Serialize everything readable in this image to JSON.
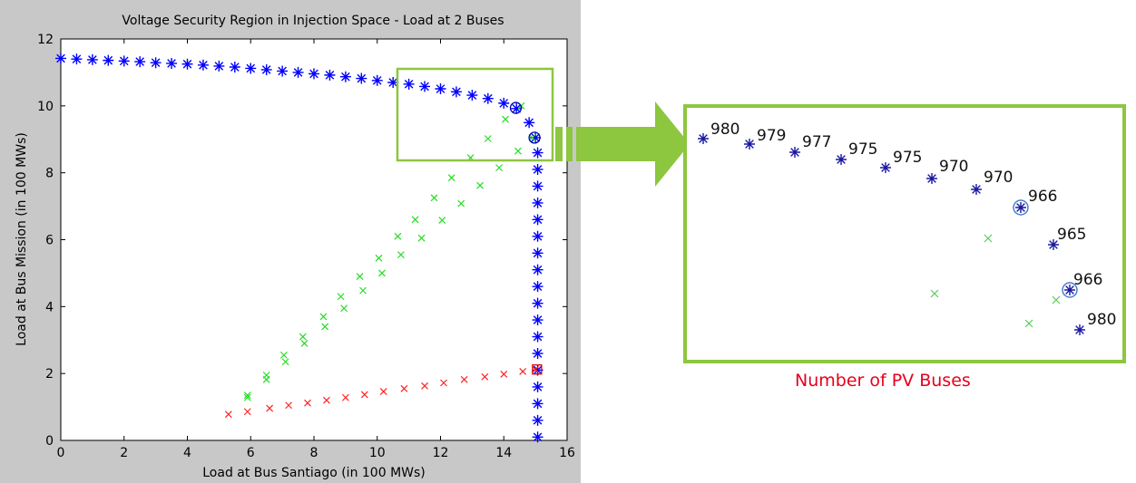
{
  "chart_data": {
    "type": "scatter",
    "title": "Voltage Security Region in Injection Space - Load at 2 Buses",
    "xlabel": "Load at Bus Santiago (in 100 MWs)",
    "ylabel": "Load at Bus Mission (in 100 MWs)",
    "xlim": [
      0,
      16
    ],
    "ylim": [
      0,
      12
    ],
    "xticks": [
      0,
      2,
      4,
      6,
      8,
      10,
      12,
      14,
      16
    ],
    "yticks": [
      0,
      2,
      4,
      6,
      8,
      10,
      12
    ],
    "grid": false,
    "series": [
      {
        "marker": "asterisk",
        "color": "#0000ff",
        "points": [
          [
            0,
            11.42
          ],
          [
            0.5,
            11.4
          ],
          [
            1.0,
            11.38
          ],
          [
            1.5,
            11.36
          ],
          [
            2.0,
            11.34
          ],
          [
            2.5,
            11.32
          ],
          [
            3.0,
            11.29
          ],
          [
            3.5,
            11.27
          ],
          [
            4.0,
            11.25
          ],
          [
            4.5,
            11.22
          ],
          [
            5.0,
            11.19
          ],
          [
            5.5,
            11.16
          ],
          [
            6.0,
            11.12
          ],
          [
            6.5,
            11.08
          ],
          [
            7.0,
            11.04
          ],
          [
            7.5,
            11.0
          ],
          [
            8.0,
            10.96
          ],
          [
            8.5,
            10.92
          ],
          [
            9.0,
            10.87
          ],
          [
            9.5,
            10.82
          ],
          [
            10.0,
            10.76
          ],
          [
            10.5,
            10.7
          ],
          [
            11.0,
            10.65
          ],
          [
            11.5,
            10.58
          ],
          [
            12.0,
            10.51
          ],
          [
            12.5,
            10.42
          ],
          [
            13.0,
            10.32
          ],
          [
            13.5,
            10.22
          ],
          [
            14.0,
            10.08
          ],
          [
            14.4,
            9.92
          ],
          [
            14.8,
            9.5
          ],
          [
            15.0,
            9.05
          ],
          [
            15.07,
            8.6
          ],
          [
            15.07,
            8.1
          ],
          [
            15.07,
            7.6
          ],
          [
            15.07,
            7.1
          ],
          [
            15.07,
            6.6
          ],
          [
            15.07,
            6.1
          ],
          [
            15.07,
            5.6
          ],
          [
            15.07,
            5.1
          ],
          [
            15.07,
            4.6
          ],
          [
            15.07,
            4.1
          ],
          [
            15.07,
            3.6
          ],
          [
            15.07,
            3.1
          ],
          [
            15.07,
            2.6
          ],
          [
            15.07,
            2.1
          ],
          [
            15.07,
            1.6
          ],
          [
            15.07,
            1.1
          ],
          [
            15.07,
            0.6
          ],
          [
            15.07,
            0.1
          ]
        ]
      },
      {
        "marker": "x",
        "color": "#22dd22",
        "points": [
          [
            5.9,
            1.35
          ],
          [
            6.5,
            1.95
          ],
          [
            7.05,
            2.55
          ],
          [
            7.65,
            3.1
          ],
          [
            8.3,
            3.7
          ],
          [
            8.85,
            4.3
          ],
          [
            9.45,
            4.9
          ],
          [
            10.05,
            5.45
          ],
          [
            10.65,
            6.1
          ],
          [
            11.2,
            6.6
          ],
          [
            11.8,
            7.25
          ],
          [
            12.35,
            7.85
          ],
          [
            12.95,
            8.45
          ],
          [
            13.5,
            9.02
          ],
          [
            14.05,
            9.6
          ],
          [
            14.55,
            10.0
          ],
          [
            5.9,
            1.28
          ],
          [
            6.5,
            1.82
          ],
          [
            7.1,
            2.35
          ],
          [
            7.7,
            2.9
          ],
          [
            8.35,
            3.4
          ],
          [
            8.95,
            3.95
          ],
          [
            9.55,
            4.48
          ],
          [
            10.15,
            5.0
          ],
          [
            10.75,
            5.55
          ],
          [
            11.4,
            6.05
          ],
          [
            12.05,
            6.58
          ],
          [
            12.65,
            7.08
          ],
          [
            13.25,
            7.62
          ],
          [
            13.85,
            8.15
          ],
          [
            14.45,
            8.65
          ],
          [
            14.9,
            9.05
          ]
        ]
      },
      {
        "marker": "x",
        "color": "#ff2222",
        "points": [
          [
            5.3,
            0.78
          ],
          [
            5.9,
            0.86
          ],
          [
            6.6,
            0.96
          ],
          [
            7.2,
            1.05
          ],
          [
            7.8,
            1.12
          ],
          [
            8.4,
            1.2
          ],
          [
            9.0,
            1.28
          ],
          [
            9.6,
            1.37
          ],
          [
            10.2,
            1.46
          ],
          [
            10.85,
            1.55
          ],
          [
            11.5,
            1.63
          ],
          [
            12.1,
            1.72
          ],
          [
            12.75,
            1.82
          ],
          [
            13.4,
            1.9
          ],
          [
            14.0,
            1.98
          ],
          [
            14.6,
            2.06
          ],
          [
            15.0,
            2.12
          ]
        ]
      }
    ],
    "circles": [
      [
        14.38,
        9.94
      ],
      [
        14.97,
        9.05
      ]
    ],
    "squares": [
      [
        15.05,
        2.12
      ]
    ],
    "zoom_view": {
      "caption": "Number of PV Buses",
      "labels": [
        "980",
        "979",
        "977",
        "975",
        "975",
        "970",
        "970",
        "966",
        "965",
        "966",
        "980"
      ]
    }
  }
}
